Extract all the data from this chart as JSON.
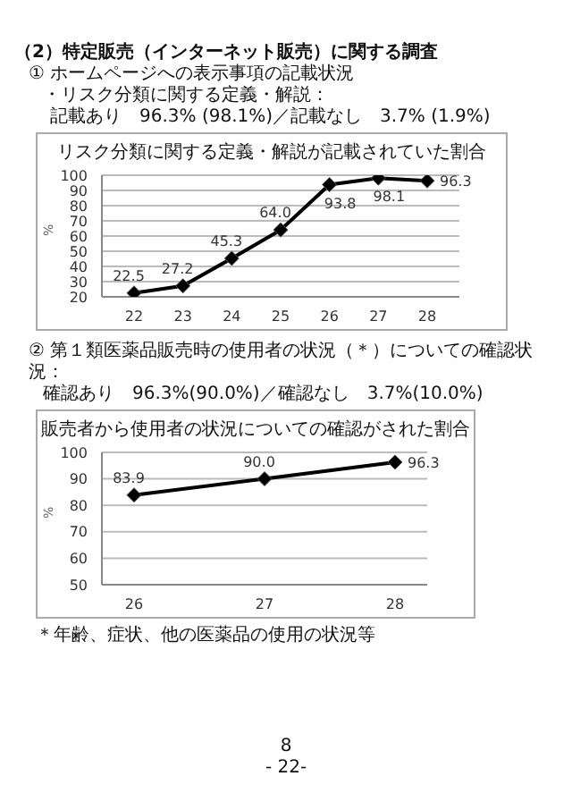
{
  "chart_data": [
    {
      "type": "line",
      "title": "リスク分類に関する定義・解説が記載されていた割合",
      "ylabel": "%",
      "annotations": [
        "（2）特定販売（インターネット販売）に関する調査",
        "① ホームページへの表示事項の記載状況",
        "・リスク分類に関する定義・解説：",
        "記載あり　96.3% (98.1%)／記載なし　3.7% (1.9%)"
      ],
      "categories": [
        "22",
        "23",
        "24",
        "25",
        "26",
        "27",
        "28"
      ],
      "series": [
        {
          "color": "#000000",
          "values": [
            22.5,
            27.2,
            45.3,
            64.0,
            93.8,
            98.1,
            96.3
          ]
        }
      ],
      "value_labels": [
        "22.5",
        "27.2",
        "45.3",
        "64.0",
        "93.8",
        "98.1",
        "96.3"
      ],
      "ylim": [
        20,
        100
      ],
      "yticks": [
        20,
        30,
        40,
        50,
        60,
        70,
        80,
        90,
        100
      ],
      "grid": "y",
      "marker": "diamond",
      "line_style": "solid"
    },
    {
      "type": "line",
      "title": "販売者から使用者の状況についての確認がされた割合",
      "ylabel": "%",
      "annotations": [
        "② 第１類医薬品販売時の使用者の状況（＊）についての確認状況：",
        "確認あり　96.3%(90.0%)／確認なし　3.7%(10.0%)",
        "＊年齢、症状、他の医薬品の使用の状況等",
        "8",
        "- 22-"
      ],
      "categories": [
        "26",
        "27",
        "28"
      ],
      "series": [
        {
          "color": "#000000",
          "values": [
            83.9,
            90.0,
            96.3
          ]
        }
      ],
      "value_labels": [
        "83.9",
        "90.0",
        "96.3"
      ],
      "ylim": [
        50,
        100
      ],
      "yticks": [
        50,
        60,
        70,
        80,
        90,
        100
      ],
      "grid": "y",
      "marker": "diamond",
      "line_style": "solid"
    }
  ]
}
